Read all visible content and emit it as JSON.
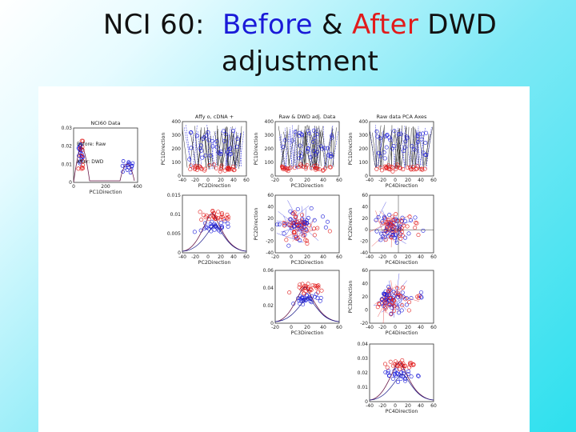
{
  "title": {
    "prefix": "NCI 60:",
    "before": "Before",
    "amp": "&",
    "after": "After",
    "suffix": "DWD",
    "line2": "adjustment"
  },
  "colors": {
    "before": "#1a1ad8",
    "after": "#e11b1b"
  },
  "figure": {
    "panels": [
      {
        "id": "p11",
        "title": "NCI60 Data",
        "xlabel": "PC1Direction",
        "ylabel": "",
        "xticks": [
          "0",
          "200",
          "400"
        ],
        "yticks": [
          "0.03",
          "0.02",
          "0.01",
          "0"
        ],
        "legend": [
          "Before: Raw",
          "After: DWD"
        ]
      },
      {
        "id": "p12",
        "title": "Affy o,   cDNA +",
        "xlabel": "PC2Direction",
        "ylabel": "PC1Direction",
        "xticks": [
          "-40",
          "-20",
          "0",
          "20",
          "40",
          "60"
        ],
        "yticks": [
          "400",
          "300",
          "200",
          "100",
          "0"
        ]
      },
      {
        "id": "p13",
        "title": "Raw & DWD adj. Data",
        "xlabel": "PC3Direction",
        "ylabel": "PC1Direction",
        "xticks": [
          "-20",
          "0",
          "20",
          "40",
          "60"
        ],
        "yticks": [
          "400",
          "300",
          "200",
          "100",
          "0"
        ]
      },
      {
        "id": "p14",
        "title": "Raw data PCA Axes",
        "xlabel": "PC4Direction",
        "ylabel": "PC1Direction",
        "xticks": [
          "-40",
          "-20",
          "0",
          "20",
          "40",
          "60"
        ],
        "yticks": [
          "400",
          "300",
          "200",
          "100",
          "0"
        ]
      },
      {
        "id": "p22",
        "title": "",
        "xlabel": "PC2Direction",
        "ylabel": "",
        "xticks": [
          "-40",
          "-20",
          "0",
          "20",
          "40",
          "60"
        ],
        "yticks": [
          "0.015",
          "0.01",
          "0.005",
          "0"
        ]
      },
      {
        "id": "p23",
        "title": "",
        "xlabel": "PC3Direction",
        "ylabel": "PC2Direction",
        "xticks": [
          "-20",
          "0",
          "20",
          "40",
          "60"
        ],
        "yticks": [
          "60",
          "40",
          "20",
          "0",
          "-20",
          "-40"
        ]
      },
      {
        "id": "p24",
        "title": "",
        "xlabel": "PC4Direction",
        "ylabel": "PC2Direction",
        "xticks": [
          "-40",
          "-20",
          "0",
          "20",
          "40",
          "60"
        ],
        "yticks": [
          "60",
          "40",
          "20",
          "0",
          "-20",
          "-40"
        ]
      },
      {
        "id": "p33",
        "title": "",
        "xlabel": "PC3Direction",
        "ylabel": "",
        "xticks": [
          "-20",
          "0",
          "20",
          "40",
          "60"
        ],
        "yticks": [
          "0.06",
          "0.04",
          "0.02",
          "0"
        ]
      },
      {
        "id": "p34",
        "title": "",
        "xlabel": "PC4Direction",
        "ylabel": "PC3Direction",
        "xticks": [
          "-40",
          "-20",
          "0",
          "20",
          "40",
          "60"
        ],
        "yticks": [
          "60",
          "40",
          "20",
          "0",
          "-20"
        ]
      },
      {
        "id": "p44",
        "title": "",
        "xlabel": "PC4Direction",
        "ylabel": "",
        "xticks": [
          "-40",
          "-20",
          "0",
          "20",
          "40",
          "60"
        ],
        "yticks": [
          "0.04",
          "0.03",
          "0.02",
          "0.01",
          "0"
        ]
      }
    ]
  }
}
